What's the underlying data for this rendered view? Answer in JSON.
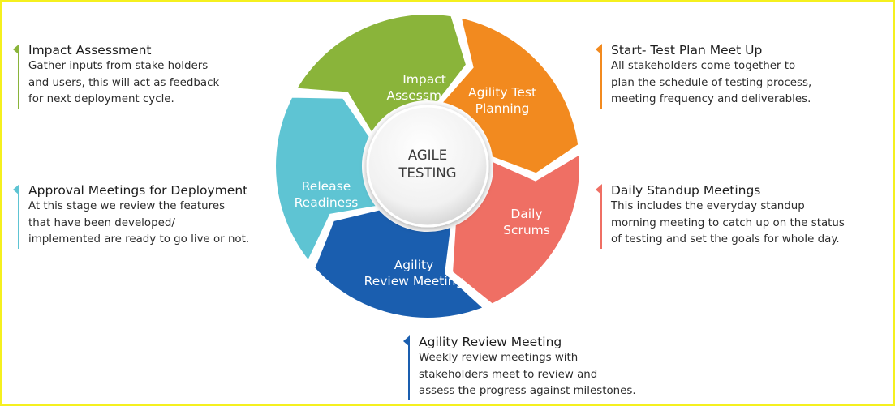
{
  "hub": {
    "line1": "AGILE",
    "line2": "TESTING"
  },
  "colors": {
    "impact": "#8ab43a",
    "planning": "#f28a1f",
    "daily": "#ef6f64",
    "review": "#1a5eaf",
    "readiness": "#5ec4d3",
    "frame": "#f5f01f"
  },
  "segments": [
    {
      "id": "impact",
      "lines": [
        "Impact",
        "Assessment"
      ]
    },
    {
      "id": "planning",
      "lines": [
        "Agility Test",
        "Planning"
      ]
    },
    {
      "id": "daily",
      "lines": [
        "Daily",
        "Scrums"
      ]
    },
    {
      "id": "review",
      "lines": [
        "Agility",
        "Review Meeting"
      ]
    },
    {
      "id": "readiness",
      "lines": [
        "Release",
        "Readiness"
      ]
    }
  ],
  "notes": {
    "impact": {
      "title": "Impact Assessment",
      "lines": [
        "Gather inputs from stake holders",
        "and users, this will act as feedback",
        "for next deployment cycle."
      ]
    },
    "planning": {
      "title": "Start- Test Plan Meet Up",
      "lines": [
        "All stakeholders come together to",
        "plan the schedule of testing process,",
        "meeting frequency and deliverables."
      ]
    },
    "approval": {
      "title": "Approval Meetings for Deployment",
      "lines": [
        "At this stage we review the features",
        "that have been developed/",
        "implemented are ready to go live or not."
      ]
    },
    "daily": {
      "title": "Daily Standup Meetings",
      "lines": [
        "This includes the everyday standup",
        "morning meeting to catch up on the status",
        "of testing and set the goals for whole day."
      ]
    },
    "review": {
      "title": "Agility Review Meeting",
      "lines": [
        "Weekly review meetings with",
        "stakeholders meet to review and",
        "assess the progress against milestones."
      ]
    }
  }
}
